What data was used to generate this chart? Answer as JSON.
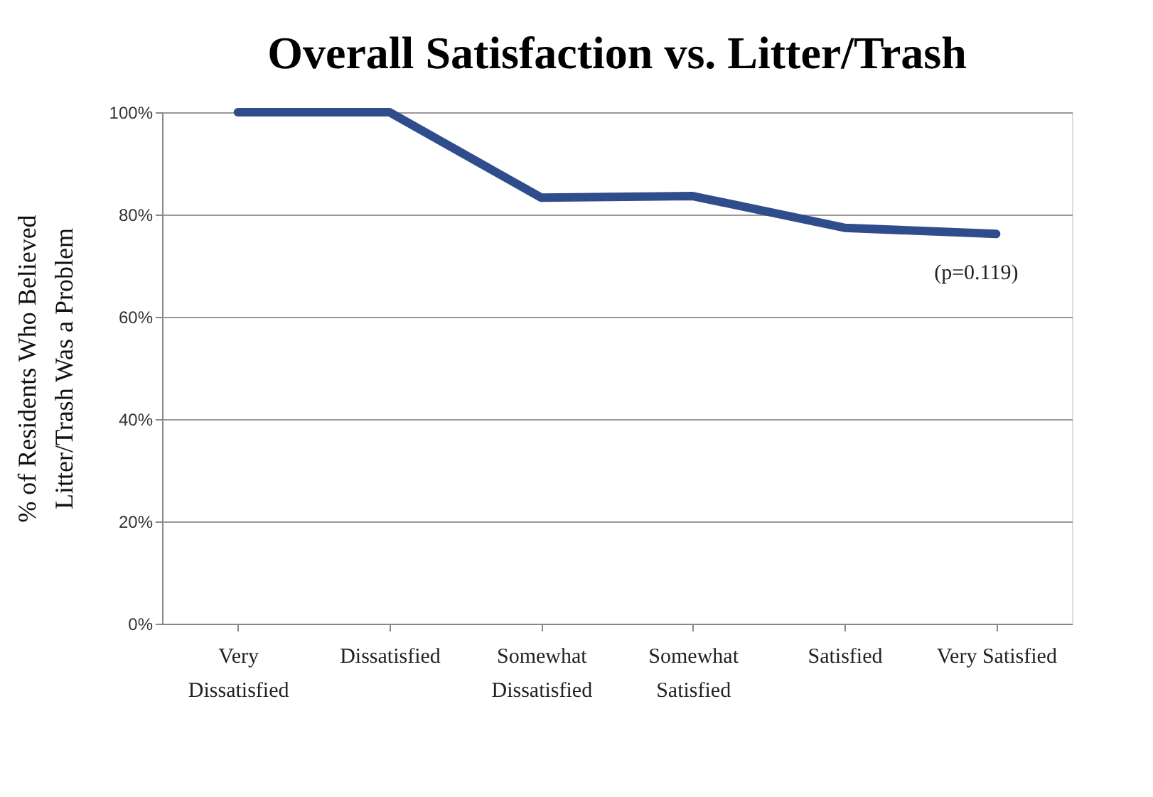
{
  "chart_data": {
    "type": "line",
    "title": "Overall Satisfaction vs. Litter/Trash",
    "ylabel": "% of Residents Who Believed Litter/Trash Was a Problem",
    "categories": [
      "Very Dissatisfied",
      "Dissatisfied",
      "Somewhat Dissatisfied",
      "Somewhat Satisfied",
      "Satisfied",
      "Very Satisfied"
    ],
    "series": [
      {
        "color": "#2f4d8c",
        "values": [
          100,
          100,
          83.3,
          83.6,
          77.4,
          76.2
        ]
      }
    ],
    "ylim": [
      0,
      100
    ],
    "yticks": [
      {
        "value": 0,
        "label": "0%"
      },
      {
        "value": 20,
        "label": "20%"
      },
      {
        "value": 40,
        "label": "40%"
      },
      {
        "value": 60,
        "label": "60%"
      },
      {
        "value": 80,
        "label": "80%"
      },
      {
        "value": 100,
        "label": "100%"
      }
    ],
    "grid": "y",
    "marker": "none",
    "line_style": "solid",
    "annotations": [
      "(p=0.119)"
    ]
  }
}
